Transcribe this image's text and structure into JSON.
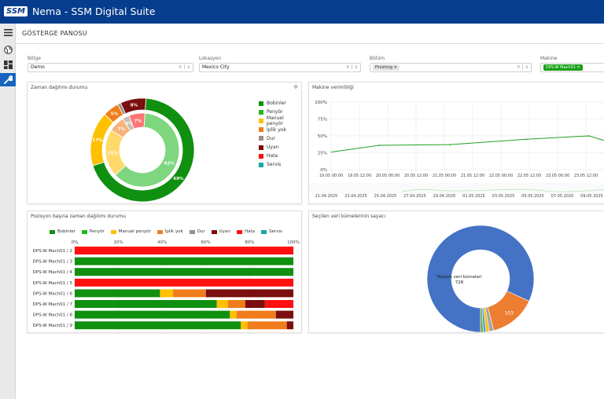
{
  "app": {
    "logo": "SSM",
    "title": "Nema - SSM Digital Suite"
  },
  "nav": {
    "items": [
      {
        "icon": "menu-icon"
      },
      {
        "icon": "globe-icon"
      },
      {
        "icon": "dashboard-icon"
      },
      {
        "icon": "wrench-icon",
        "active": true
      }
    ]
  },
  "page": {
    "title": "GÖSTERGE PANOSU"
  },
  "filters": {
    "region": {
      "label": "Bölge",
      "value": "Demo"
    },
    "location": {
      "label": "Lokasyon",
      "value": "Mexico City"
    },
    "section": {
      "label": "Bölüm",
      "chip": "Finishing"
    },
    "machine": {
      "label": "Makine",
      "chip": "DPS-W Mach01"
    },
    "clear_symbol": "✕",
    "dropdown_symbol": "∨"
  },
  "colors": {
    "Bobinler": "#109010",
    "Penyör": "#20b820",
    "Manuel penyör": "#ffc000",
    "İplik yok": "#f07c1c",
    "Dur": "#9e8e84",
    "Uyarı": "#7b0e0e",
    "Hata": "#ff1010",
    "Servis": "#16a8a0",
    "line": "#22a022",
    "donut_blue": "#4472c4",
    "donut_orange": "#ed7d31"
  },
  "panel1": {
    "title": "Zaman dağılımı durumu",
    "legend": [
      "Bobinler",
      "Penyör",
      "Manuel penyör",
      "İplik yok",
      "Dur",
      "Uyarı",
      "Hata",
      "Servis"
    ]
  },
  "panel2": {
    "title": "Makine verimliliği"
  },
  "panel3": {
    "title": "Pozisyon başına zaman dağılımı durumu",
    "legend": [
      "Bobinler",
      "Penyör",
      "Manuel penyör",
      "İplik yok",
      "Dur",
      "Uyarı",
      "Hata",
      "Servis"
    ]
  },
  "panel4": {
    "title": "Seçilen veri kümelerinin sayacı"
  },
  "chart_data": [
    {
      "type": "pie",
      "title": "Zaman dağılımı durumu",
      "rings": [
        {
          "name": "outer",
          "slices": [
            {
              "label": "Bobinler",
              "value": 69,
              "text": "69%"
            },
            {
              "label": "Manuel penyör",
              "value": 17,
              "text": "17%"
            },
            {
              "label": "İplik yok",
              "value": 5,
              "text": "5%"
            },
            {
              "label": "Dur",
              "value": 1,
              "text": ""
            },
            {
              "label": "Uyarı",
              "value": 8,
              "text": "8%"
            }
          ]
        },
        {
          "name": "inner",
          "slices": [
            {
              "label": "Penyör",
              "value": 62,
              "text": "62%"
            },
            {
              "label": "Manuel penyör",
              "value": 21,
              "text": "21%"
            },
            {
              "label": "İplik yok",
              "value": 7,
              "text": "7%"
            },
            {
              "label": "Dur",
              "value": 3,
              "text": "3%"
            },
            {
              "label": "Hata",
              "value": 7,
              "text": "7%"
            }
          ]
        }
      ],
      "legend": [
        "Bobinler",
        "Penyör",
        "Manuel penyör",
        "İplik yok",
        "Dur",
        "Uyarı",
        "Hata",
        "Servis"
      ]
    },
    {
      "type": "line",
      "title": "Makine verimliliği",
      "yticks": [
        "100%",
        "75%",
        "50%",
        "25%",
        "0%"
      ],
      "ylim": [
        0,
        100
      ],
      "xticks": [
        "19.05 00:00",
        "19.05 12:00",
        "20.05 00:00",
        "20.05 12:00",
        "21.05 00:00",
        "21.05 12:00",
        "22.05 00:00",
        "22.05 12:00",
        "23.05 00:00",
        "23.05 12:00"
      ],
      "navigator_ticks": [
        "21.04.2025",
        "23.04.2025",
        "25.04.2025",
        "27.04.2025",
        "29.04.2025",
        "01.05.2025",
        "03.05.2025",
        "05.05.2025",
        "07.05.2025",
        "09.05.2025"
      ],
      "series": [
        {
          "x": [
            0,
            1.7,
            4.2,
            6.9,
            9.1,
            10.4
          ],
          "values": [
            26,
            36,
            37,
            45,
            50,
            34
          ]
        }
      ]
    },
    {
      "type": "bar",
      "title": "Pozisyon başına zaman dağılımı durumu",
      "stacked": true,
      "horizontal": true,
      "xticks": [
        "0%",
        "20%",
        "40%",
        "60%",
        "80%",
        "100%"
      ],
      "categories": [
        "DPS-W Mach01 / 2",
        "DPS-W Mach01 / 3",
        "DPS-W Mach01 / 4",
        "DPS-W Mach01 / 5",
        "DPS-W Mach01 / 6",
        "DPS-W Mach01 / 7",
        "DPS-W Mach01 / 8",
        "DPS-W Mach01 / 9"
      ],
      "series": [
        {
          "name": "Bobinler",
          "values": [
            0,
            100,
            100,
            0,
            39,
            65,
            71,
            76
          ]
        },
        {
          "name": "Penyör",
          "values": [
            0,
            0,
            0,
            0,
            0,
            0,
            0,
            0
          ]
        },
        {
          "name": "Manuel penyör",
          "values": [
            0,
            0,
            0,
            0,
            6,
            5,
            3,
            3
          ]
        },
        {
          "name": "İplik yok",
          "values": [
            0,
            0,
            0,
            0,
            15,
            8,
            18,
            18
          ]
        },
        {
          "name": "Dur",
          "values": [
            0,
            0,
            0,
            0,
            0,
            0,
            0,
            0
          ]
        },
        {
          "name": "Uyarı",
          "values": [
            0,
            0,
            0,
            0,
            40,
            9,
            8,
            3
          ]
        },
        {
          "name": "Hata",
          "values": [
            100,
            0,
            0,
            100,
            0,
            13,
            0,
            0
          ]
        },
        {
          "name": "Servis",
          "values": [
            0,
            0,
            0,
            0,
            0,
            0,
            0,
            0
          ]
        }
      ]
    },
    {
      "type": "pie",
      "title": "Seçilen veri kümelerinin sayacı",
      "center_title": "Toplam veri kümeleri",
      "center_value": "728",
      "slices": [
        {
          "label": "596",
          "value": 596,
          "color": "#4472c4"
        },
        {
          "label": "103",
          "value": 103,
          "color": "#ed7d31"
        },
        {
          "label": "",
          "value": 10,
          "color": "#a5a5a5"
        },
        {
          "label": "",
          "value": 7,
          "color": "#ffc000"
        },
        {
          "label": "",
          "value": 6,
          "color": "#5b9bd5"
        },
        {
          "label": "",
          "value": 6,
          "color": "#70ad47"
        }
      ]
    }
  ]
}
